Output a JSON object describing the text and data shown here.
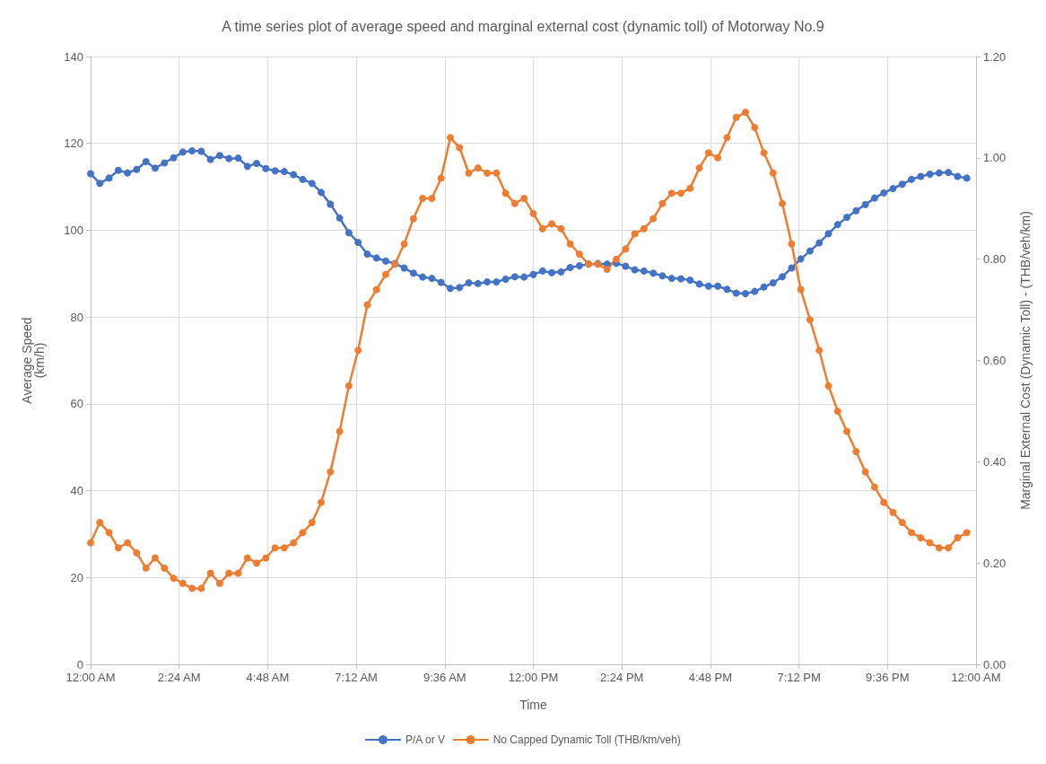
{
  "chart_data": {
    "type": "line",
    "title": "A time series plot of average speed and marginal external cost (dynamic toll) of Motorway No.9",
    "xlabel": "Time",
    "ylabel": "Average Speed\n(km/h)",
    "y2label": "Marginal External Cost (Dynamic Toll) - (THB/veh/km)",
    "x": [
      0,
      0.25,
      0.5,
      0.75,
      1,
      1.25,
      1.5,
      1.75,
      2,
      2.25,
      2.5,
      2.75,
      3,
      3.25,
      3.5,
      3.75,
      4,
      4.25,
      4.5,
      4.75,
      5,
      5.25,
      5.5,
      5.75,
      6,
      6.25,
      6.5,
      6.75,
      7,
      7.25,
      7.5,
      7.75,
      8,
      8.25,
      8.5,
      8.75,
      9,
      9.25,
      9.5,
      9.75,
      10,
      10.25,
      10.5,
      10.75,
      11,
      11.25,
      11.5,
      11.75,
      12,
      12.25,
      12.5,
      12.75,
      13,
      13.25,
      13.5,
      13.75,
      14,
      14.25,
      14.5,
      14.75,
      15,
      15.25,
      15.5,
      15.75,
      16,
      16.25,
      16.5,
      16.75,
      17,
      17.25,
      17.5,
      17.75,
      18,
      18.25,
      18.5,
      18.75,
      19,
      19.25,
      19.5,
      19.75,
      20,
      20.25,
      20.5,
      20.75,
      21,
      21.25,
      21.5,
      21.75,
      22,
      22.25,
      22.5,
      22.75,
      23,
      23.25,
      23.5,
      23.75
    ],
    "series": [
      {
        "name": "P/A or V",
        "color": "#4472c4",
        "values": [
          113,
          110.8,
          112,
          113.8,
          113.2,
          114,
          115.8,
          114.3,
          115.5,
          116.7,
          118,
          118.3,
          118.2,
          116.3,
          117.2,
          116.5,
          116.6,
          114.7,
          115.4,
          114.2,
          113.7,
          113.5,
          112.8,
          111.7,
          110.8,
          108.7,
          106,
          102.8,
          99.4,
          97.2,
          94.5,
          93.6,
          92.9,
          92.3,
          91.3,
          90.1,
          89.2,
          88.9,
          88,
          86.6,
          86.8,
          87.9,
          87.7,
          88.1,
          88.1,
          88.7,
          89.3,
          89.2,
          89.8,
          90.6,
          90.2,
          90.4,
          91.4,
          91.8,
          92.2,
          92.3,
          92.2,
          92.4,
          91.7,
          90.9,
          90.6,
          90.1,
          89.5,
          88.9,
          88.8,
          88.5,
          87.6,
          87.1,
          87.1,
          86.4,
          85.5,
          85.4,
          85.9,
          86.9,
          87.9,
          89.3,
          91.3,
          93.4,
          95.2,
          97.1,
          99.2,
          101.3,
          103,
          104.5,
          105.9,
          107.4,
          108.6,
          109.6,
          110.6,
          111.7,
          112.4,
          112.9,
          113.2,
          113.3,
          112.4,
          112
        ]
      },
      {
        "name": "No Capped Dynamic Toll (THB/km/veh)",
        "color": "#ed7d31",
        "axis": "y2",
        "values": [
          0.24,
          0.28,
          0.26,
          0.23,
          0.24,
          0.22,
          0.19,
          0.21,
          0.19,
          0.17,
          0.16,
          0.15,
          0.15,
          0.18,
          0.16,
          0.18,
          0.18,
          0.21,
          0.2,
          0.21,
          0.23,
          0.23,
          0.24,
          0.26,
          0.28,
          0.32,
          0.38,
          0.46,
          0.55,
          0.62,
          0.71,
          0.74,
          0.77,
          0.79,
          0.83,
          0.88,
          0.92,
          0.92,
          0.96,
          1.04,
          1.02,
          0.97,
          0.98,
          0.97,
          0.97,
          0.93,
          0.91,
          0.92,
          0.89,
          0.86,
          0.87,
          0.86,
          0.83,
          0.81,
          0.79,
          0.79,
          0.78,
          0.8,
          0.82,
          0.85,
          0.86,
          0.88,
          0.91,
          0.93,
          0.93,
          0.94,
          0.98,
          1.01,
          1,
          1.04,
          1.08,
          1.09,
          1.06,
          1.01,
          0.97,
          0.91,
          0.83,
          0.74,
          0.68,
          0.62,
          0.55,
          0.5,
          0.46,
          0.42,
          0.38,
          0.35,
          0.32,
          0.3,
          0.28,
          0.26,
          0.25,
          0.24,
          0.23,
          0.23,
          0.25,
          0.26
        ]
      }
    ],
    "xlim": [
      0,
      24
    ],
    "xticks": [
      {
        "value": 0,
        "label": "12:00 AM"
      },
      {
        "value": 2.4,
        "label": "2:24 AM"
      },
      {
        "value": 4.8,
        "label": "4:48 AM"
      },
      {
        "value": 7.2,
        "label": "7:12 AM"
      },
      {
        "value": 9.6,
        "label": "9:36 AM"
      },
      {
        "value": 12,
        "label": "12:00 PM"
      },
      {
        "value": 14.4,
        "label": "2:24 PM"
      },
      {
        "value": 16.8,
        "label": "4:48 PM"
      },
      {
        "value": 19.2,
        "label": "7:12 PM"
      },
      {
        "value": 21.6,
        "label": "9:36 PM"
      },
      {
        "value": 24,
        "label": "12:00 AM"
      }
    ],
    "ylim": [
      0,
      140
    ],
    "yticks": [
      0,
      20,
      40,
      60,
      80,
      100,
      120,
      140
    ],
    "y2lim": [
      0,
      1.2
    ],
    "y2ticks": [
      {
        "value": 0,
        "label": "0.00"
      },
      {
        "value": 0.2,
        "label": "0.20"
      },
      {
        "value": 0.4,
        "label": "0.40"
      },
      {
        "value": 0.6,
        "label": "0.60"
      },
      {
        "value": 0.8,
        "label": "0.80"
      },
      {
        "value": 1,
        "label": "1.00"
      },
      {
        "value": 1.2,
        "label": "1.20"
      }
    ],
    "grid": true,
    "legend": "bottom",
    "marker": "circle",
    "line_style": "solid"
  }
}
